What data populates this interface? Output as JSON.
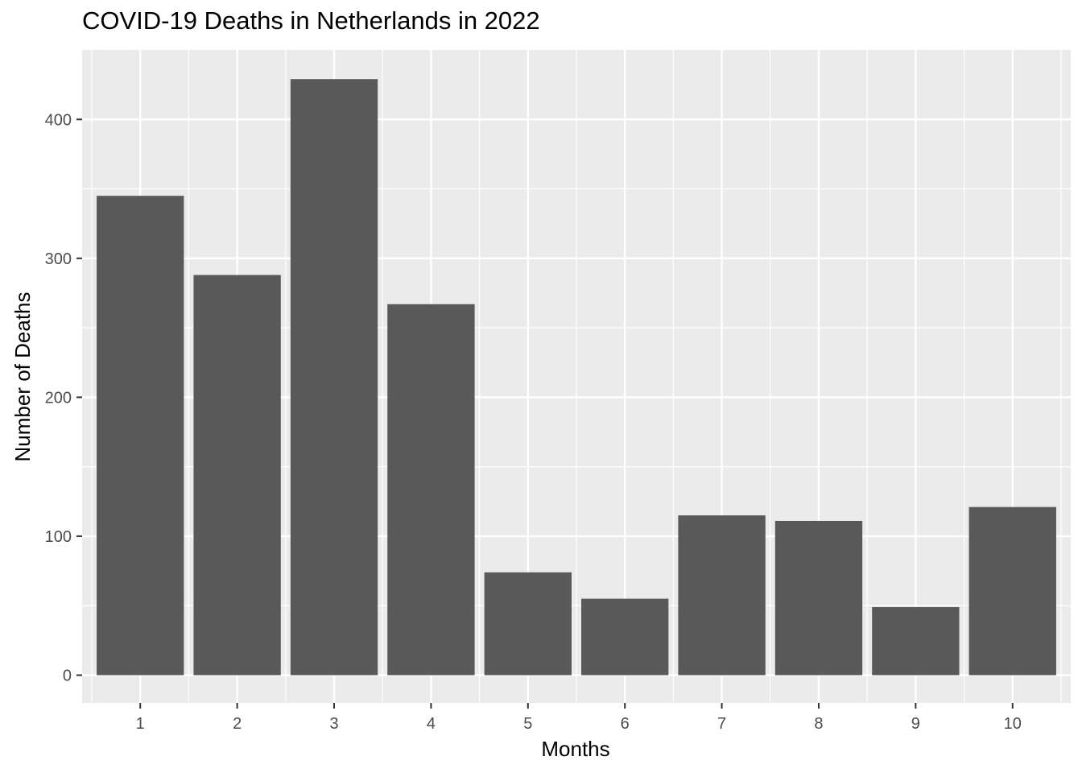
{
  "chart_data": {
    "type": "bar",
    "title": "COVID-19 Deaths in Netherlands in 2022",
    "xlabel": "Months",
    "ylabel": "Number of Deaths",
    "categories": [
      "1",
      "2",
      "3",
      "4",
      "5",
      "6",
      "7",
      "8",
      "9",
      "10"
    ],
    "values": [
      345,
      288,
      429,
      267,
      74,
      55,
      115,
      111,
      49,
      121
    ],
    "ylim": [
      -20,
      450
    ],
    "yticks": [
      0,
      100,
      200,
      300,
      400
    ],
    "grid": true,
    "bar_color": "#595959",
    "panel_background": "#ebebeb",
    "grid_color": "#ffffff"
  }
}
